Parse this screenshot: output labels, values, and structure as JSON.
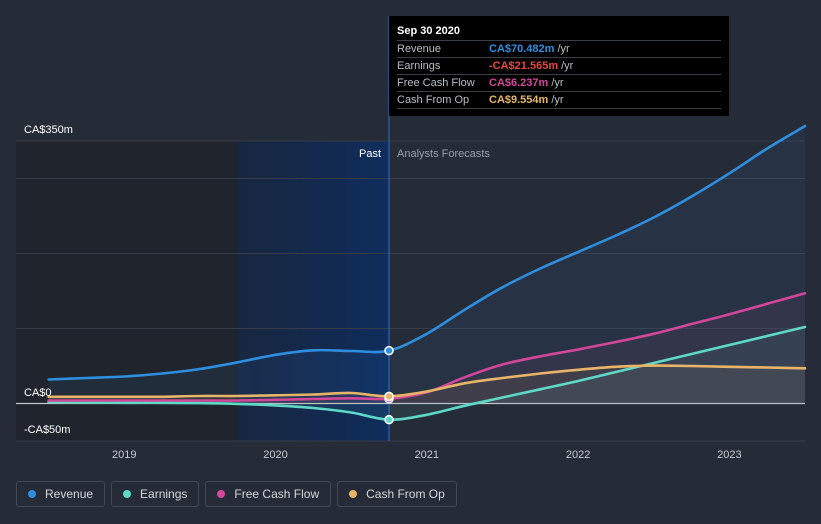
{
  "chart_data": {
    "type": "line",
    "y_unit_labels": [
      "CA$350m",
      "CA$0",
      "-CA$50m"
    ],
    "ylim": [
      -50,
      350
    ],
    "x_ticks": [
      "2019",
      "2020",
      "2021",
      "2022",
      "2023"
    ],
    "divider_labels": {
      "past": "Past",
      "forecast": "Analysts Forecasts"
    },
    "highlight_date": "2020.75",
    "series": [
      {
        "name": "Revenue",
        "color": "#2e8fe0",
        "points": [
          [
            2018.5,
            32
          ],
          [
            2018.75,
            34
          ],
          [
            2019.0,
            36
          ],
          [
            2019.25,
            40
          ],
          [
            2019.5,
            46
          ],
          [
            2019.75,
            55
          ],
          [
            2020.0,
            65
          ],
          [
            2020.25,
            71
          ],
          [
            2020.5,
            70
          ],
          [
            2020.75,
            70.482
          ],
          [
            2021.0,
            93
          ],
          [
            2021.25,
            125
          ],
          [
            2021.5,
            155
          ],
          [
            2021.75,
            180
          ],
          [
            2022.0,
            202
          ],
          [
            2022.25,
            224
          ],
          [
            2022.5,
            248
          ],
          [
            2022.75,
            276
          ],
          [
            2023.0,
            307
          ],
          [
            2023.25,
            340
          ],
          [
            2023.5,
            370
          ]
        ]
      },
      {
        "name": "Earnings",
        "color": "#5ed9c8",
        "points": [
          [
            2018.5,
            2
          ],
          [
            2018.75,
            1.5
          ],
          [
            2019.0,
            1
          ],
          [
            2019.25,
            1
          ],
          [
            2019.5,
            0.5
          ],
          [
            2019.75,
            -0.5
          ],
          [
            2020.0,
            -2.5
          ],
          [
            2020.25,
            -6
          ],
          [
            2020.5,
            -12
          ],
          [
            2020.75,
            -21.565
          ],
          [
            2021.0,
            -15
          ],
          [
            2021.25,
            -3
          ],
          [
            2021.5,
            8
          ],
          [
            2021.75,
            19
          ],
          [
            2022.0,
            30
          ],
          [
            2022.25,
            42
          ],
          [
            2022.5,
            54
          ],
          [
            2022.75,
            66
          ],
          [
            2023.0,
            78
          ],
          [
            2023.25,
            90
          ],
          [
            2023.5,
            102
          ]
        ]
      },
      {
        "name": "Free Cash Flow",
        "color": "#d2479a",
        "points": [
          [
            2018.5,
            4
          ],
          [
            2018.75,
            4
          ],
          [
            2019.0,
            4
          ],
          [
            2019.25,
            4
          ],
          [
            2019.5,
            4
          ],
          [
            2019.75,
            4
          ],
          [
            2020.0,
            5
          ],
          [
            2020.25,
            6
          ],
          [
            2020.5,
            7
          ],
          [
            2020.75,
            6.237
          ],
          [
            2021.0,
            15
          ],
          [
            2021.25,
            35
          ],
          [
            2021.5,
            52
          ],
          [
            2021.75,
            63
          ],
          [
            2022.0,
            72
          ],
          [
            2022.25,
            82
          ],
          [
            2022.5,
            93
          ],
          [
            2022.75,
            106
          ],
          [
            2023.0,
            119
          ],
          [
            2023.25,
            133
          ],
          [
            2023.5,
            147
          ]
        ]
      },
      {
        "name": "Cash From Op",
        "color": "#e8b568",
        "points": [
          [
            2018.5,
            9
          ],
          [
            2018.75,
            9
          ],
          [
            2019.0,
            9
          ],
          [
            2019.25,
            9
          ],
          [
            2019.5,
            10
          ],
          [
            2019.75,
            10
          ],
          [
            2020.0,
            11
          ],
          [
            2020.25,
            12
          ],
          [
            2020.5,
            14
          ],
          [
            2020.75,
            9.554
          ],
          [
            2021.0,
            16
          ],
          [
            2021.25,
            27
          ],
          [
            2021.5,
            34
          ],
          [
            2021.75,
            40
          ],
          [
            2022.0,
            45
          ],
          [
            2022.25,
            49
          ],
          [
            2022.5,
            50.5
          ],
          [
            2022.75,
            50
          ],
          [
            2023.0,
            49
          ],
          [
            2023.25,
            48
          ],
          [
            2023.5,
            47
          ]
        ]
      }
    ]
  },
  "tooltip": {
    "date": "Sep 30 2020",
    "rows": [
      {
        "label": "Revenue",
        "value": "CA$70.482m",
        "unit": "/yr",
        "color": "#2e8fe0"
      },
      {
        "label": "Earnings",
        "value": "-CA$21.565m",
        "unit": "/yr",
        "color": "#e8463f"
      },
      {
        "label": "Free Cash Flow",
        "value": "CA$6.237m",
        "unit": "/yr",
        "color": "#d2479a"
      },
      {
        "label": "Cash From Op",
        "value": "CA$9.554m",
        "unit": "/yr",
        "color": "#e8b568"
      }
    ]
  },
  "legend": [
    {
      "label": "Revenue",
      "color": "#2e8fe0"
    },
    {
      "label": "Earnings",
      "color": "#5ed9c8"
    },
    {
      "label": "Free Cash Flow",
      "color": "#d2479a"
    },
    {
      "label": "Cash From Op",
      "color": "#e8b568"
    }
  ]
}
